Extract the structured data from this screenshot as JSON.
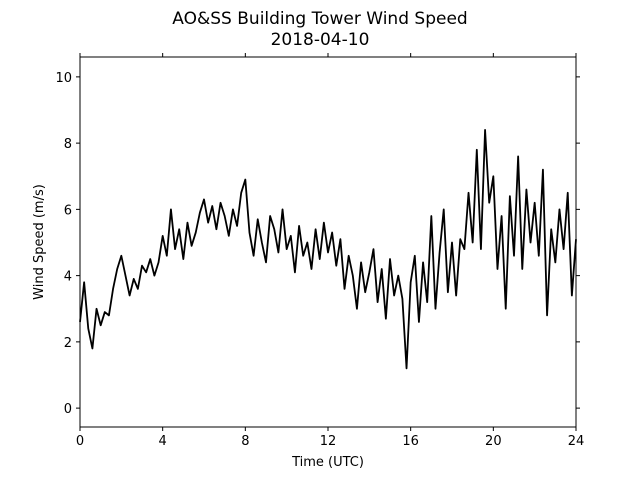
{
  "chart_data": {
    "type": "line",
    "title": "AO&SS Building Tower Wind Speed",
    "subtitle": "2018-04-10",
    "x_label": "Time (UTC)",
    "y_label": "Wind Speed (m/s)",
    "color": "#000000",
    "xlim": [
      0,
      24
    ],
    "xticks": [
      0,
      4,
      8,
      12,
      16,
      20,
      24
    ],
    "ylim": [
      -0.57,
      10.6
    ],
    "yticks": [
      0,
      2,
      4,
      6,
      8,
      10
    ],
    "grid": false,
    "x": [
      0,
      0.2,
      0.4,
      0.6,
      0.8,
      1,
      1.2,
      1.4,
      1.6,
      1.8,
      2,
      2.2,
      2.4,
      2.6,
      2.8,
      3,
      3.2,
      3.4,
      3.6,
      3.8,
      4,
      4.2,
      4.4,
      4.6,
      4.8,
      5,
      5.2,
      5.4,
      5.6,
      5.8,
      6,
      6.2,
      6.4,
      6.6,
      6.8,
      7,
      7.2,
      7.4,
      7.6,
      7.8,
      8,
      8.2,
      8.4,
      8.6,
      8.8,
      9,
      9.2,
      9.4,
      9.6,
      9.8,
      10,
      10.2,
      10.4,
      10.6,
      10.8,
      11,
      11.2,
      11.4,
      11.6,
      11.8,
      12,
      12.2,
      12.4,
      12.6,
      12.8,
      13,
      13.2,
      13.4,
      13.6,
      13.8,
      14,
      14.2,
      14.4,
      14.6,
      14.8,
      15,
      15.2,
      15.4,
      15.6,
      15.8,
      16,
      16.2,
      16.4,
      16.6,
      16.8,
      17,
      17.2,
      17.4,
      17.6,
      17.8,
      18,
      18.2,
      18.4,
      18.6,
      18.8,
      19,
      19.2,
      19.4,
      19.6,
      19.8,
      20,
      20.2,
      20.4,
      20.6,
      20.8,
      21,
      21.2,
      21.4,
      21.6,
      21.8,
      22,
      22.2,
      22.4,
      22.6,
      22.8,
      23,
      23.2,
      23.4,
      23.6,
      23.8,
      24
    ],
    "values": [
      2.6,
      3.8,
      2.4,
      1.8,
      3.0,
      2.5,
      2.9,
      2.8,
      3.6,
      4.2,
      4.6,
      4.0,
      3.4,
      3.9,
      3.6,
      4.3,
      4.1,
      4.5,
      4.0,
      4.4,
      5.2,
      4.6,
      6.0,
      4.8,
      5.4,
      4.5,
      5.6,
      4.9,
      5.3,
      5.9,
      6.3,
      5.6,
      6.1,
      5.4,
      6.2,
      5.8,
      5.2,
      6.0,
      5.5,
      6.5,
      6.9,
      5.3,
      4.6,
      5.7,
      5.0,
      4.4,
      5.8,
      5.4,
      4.7,
      6.0,
      4.8,
      5.2,
      4.1,
      5.5,
      4.6,
      5.0,
      4.2,
      5.4,
      4.5,
      5.6,
      4.7,
      5.3,
      4.3,
      5.1,
      3.6,
      4.6,
      4.0,
      3.0,
      4.4,
      3.5,
      4.1,
      4.8,
      3.2,
      4.2,
      2.7,
      4.5,
      3.4,
      4.0,
      3.3,
      1.2,
      3.8,
      4.6,
      2.6,
      4.4,
      3.2,
      5.8,
      3.0,
      4.7,
      6.0,
      3.5,
      5.0,
      3.4,
      5.1,
      4.8,
      6.5,
      5.0,
      7.8,
      4.8,
      8.4,
      6.2,
      7.0,
      4.2,
      5.8,
      3.0,
      6.4,
      4.6,
      7.6,
      4.2,
      6.6,
      5.0,
      6.2,
      4.6,
      7.2,
      2.8,
      5.4,
      4.4,
      6.0,
      4.8,
      6.5,
      3.4,
      5.1
    ]
  }
}
